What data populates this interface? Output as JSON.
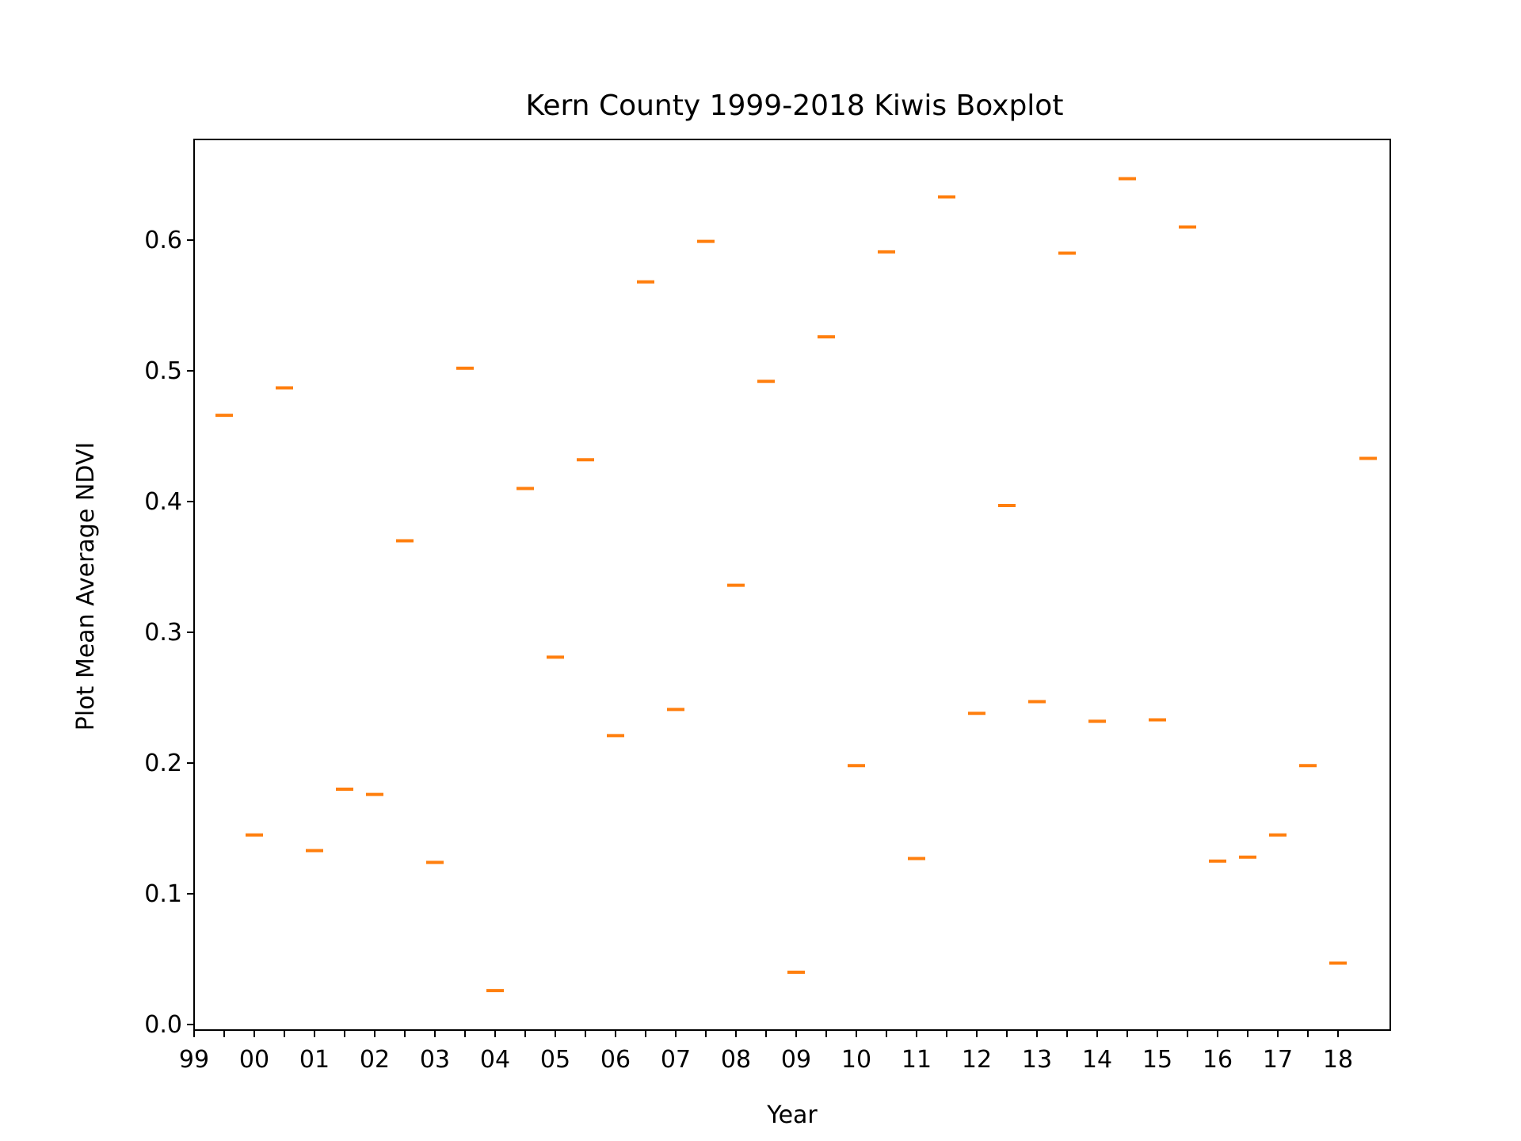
{
  "chart_data": {
    "type": "box",
    "title": "Kern County 1999-2018 Kiwis Boxplot",
    "xlabel": "Year",
    "ylabel": "Plot Mean Average NDVI",
    "ylim": [
      -0.01,
      0.68
    ],
    "yticks": [
      "0.0",
      "0.1",
      "0.2",
      "0.3",
      "0.4",
      "0.5",
      "0.6"
    ],
    "xtick_labels": [
      "99",
      "00",
      "01",
      "02",
      "03",
      "04",
      "05",
      "06",
      "07",
      "08",
      "09",
      "10",
      "11",
      "12",
      "13",
      "14",
      "15",
      "16",
      "17",
      "18"
    ],
    "grid": false,
    "median_color": "#ff7f0e",
    "values": [
      0.466,
      0.145,
      0.487,
      0.133,
      0.18,
      0.176,
      0.37,
      0.124,
      0.502,
      0.026,
      0.41,
      0.281,
      0.432,
      0.221,
      0.568,
      0.241,
      0.599,
      0.336,
      0.492,
      0.04,
      0.526,
      0.198,
      0.591,
      0.127,
      0.633,
      0.238,
      0.397,
      0.247,
      0.59,
      0.232,
      0.647,
      0.233,
      0.61,
      0.125,
      0.128,
      0.145,
      0.198,
      0.047,
      0.433
    ]
  }
}
